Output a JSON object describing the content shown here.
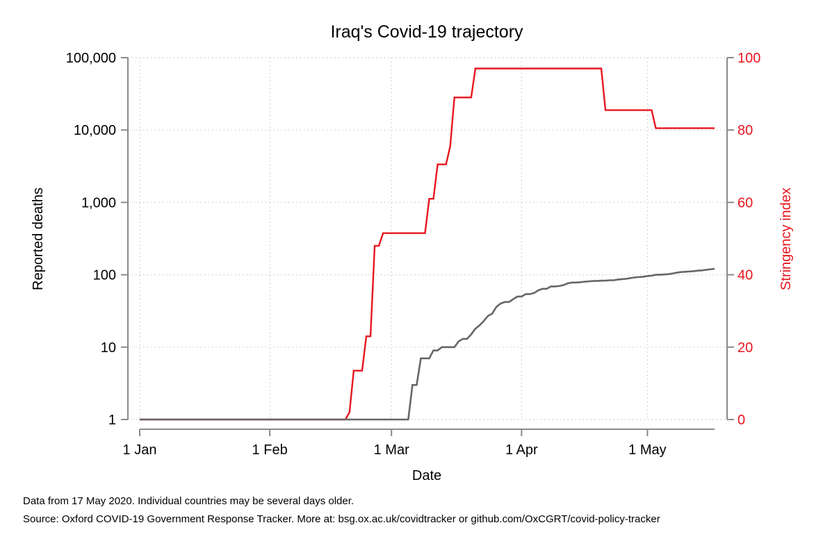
{
  "chart_data": {
    "type": "line",
    "title": "Iraq's Covid-19 trajectory",
    "xlabel": "Date",
    "ylabel": "Reported deaths",
    "y2label": "Stringency index",
    "x_ticks": [
      {
        "date": "2020-01-01",
        "label": "1 Jan"
      },
      {
        "date": "2020-02-01",
        "label": "1 Feb"
      },
      {
        "date": "2020-03-01",
        "label": "1 Mar"
      },
      {
        "date": "2020-04-01",
        "label": "1 Apr"
      },
      {
        "date": "2020-05-01",
        "label": "1 May"
      }
    ],
    "y_ticks": [
      {
        "value": 1,
        "label": "1"
      },
      {
        "value": 10,
        "label": "10"
      },
      {
        "value": 100,
        "label": "100"
      },
      {
        "value": 1000,
        "label": "1,000"
      },
      {
        "value": 10000,
        "label": "10,000"
      },
      {
        "value": 100000,
        "label": "100,000"
      }
    ],
    "y2_ticks": [
      {
        "value": 0,
        "label": "0"
      },
      {
        "value": 20,
        "label": "20"
      },
      {
        "value": 40,
        "label": "40"
      },
      {
        "value": 60,
        "label": "60"
      },
      {
        "value": 80,
        "label": "80"
      },
      {
        "value": 100,
        "label": "100"
      }
    ],
    "xlim": [
      "2020-01-01",
      "2020-05-17"
    ],
    "ylim": [
      1,
      100000
    ],
    "y2lim": [
      0,
      100
    ],
    "yscale": "log",
    "grid": true,
    "series": [
      {
        "axis": "right",
        "color": "#e8161f",
        "points": [
          [
            "2020-01-01",
            0
          ],
          [
            "2020-02-19",
            0
          ],
          [
            "2020-02-20",
            2
          ],
          [
            "2020-02-21",
            13.5
          ],
          [
            "2020-02-22",
            13.5
          ],
          [
            "2020-02-23",
            13.5
          ],
          [
            "2020-02-24",
            23
          ],
          [
            "2020-02-25",
            23
          ],
          [
            "2020-02-26",
            48
          ],
          [
            "2020-02-27",
            48
          ],
          [
            "2020-02-28",
            51.5
          ],
          [
            "2020-03-01",
            51.5
          ],
          [
            "2020-03-05",
            51.5
          ],
          [
            "2020-03-09",
            51.5
          ],
          [
            "2020-03-10",
            61
          ],
          [
            "2020-03-11",
            61
          ],
          [
            "2020-03-12",
            70.5
          ],
          [
            "2020-03-13",
            70.5
          ],
          [
            "2020-03-14",
            70.5
          ],
          [
            "2020-03-15",
            75.5
          ],
          [
            "2020-03-16",
            89
          ],
          [
            "2020-03-17",
            89
          ],
          [
            "2020-03-20",
            89
          ],
          [
            "2020-03-21",
            97
          ],
          [
            "2020-03-25",
            97
          ],
          [
            "2020-04-05",
            97
          ],
          [
            "2020-04-15",
            97
          ],
          [
            "2020-04-20",
            97
          ],
          [
            "2020-04-21",
            85.5
          ],
          [
            "2020-04-25",
            85.5
          ],
          [
            "2020-05-02",
            85.5
          ],
          [
            "2020-05-03",
            80.5
          ],
          [
            "2020-05-10",
            80.5
          ],
          [
            "2020-05-17",
            80.5
          ]
        ]
      },
      {
        "axis": "left",
        "color": "#666666",
        "points": [
          [
            "2020-01-01",
            1
          ],
          [
            "2020-02-20",
            1
          ],
          [
            "2020-03-01",
            1
          ],
          [
            "2020-03-05",
            1
          ],
          [
            "2020-03-06",
            3
          ],
          [
            "2020-03-07",
            3
          ],
          [
            "2020-03-08",
            7
          ],
          [
            "2020-03-09",
            7
          ],
          [
            "2020-03-10",
            7
          ],
          [
            "2020-03-11",
            9
          ],
          [
            "2020-03-12",
            9
          ],
          [
            "2020-03-13",
            10
          ],
          [
            "2020-03-14",
            10
          ],
          [
            "2020-03-15",
            10
          ],
          [
            "2020-03-16",
            10
          ],
          [
            "2020-03-17",
            12
          ],
          [
            "2020-03-18",
            13
          ],
          [
            "2020-03-19",
            13
          ],
          [
            "2020-03-20",
            15
          ],
          [
            "2020-03-21",
            18
          ],
          [
            "2020-03-22",
            20
          ],
          [
            "2020-03-23",
            23
          ],
          [
            "2020-03-24",
            27
          ],
          [
            "2020-03-25",
            29
          ],
          [
            "2020-03-26",
            36
          ],
          [
            "2020-03-27",
            40
          ],
          [
            "2020-03-28",
            42
          ],
          [
            "2020-03-29",
            42
          ],
          [
            "2020-03-30",
            46
          ],
          [
            "2020-03-31",
            50
          ],
          [
            "2020-04-01",
            50
          ],
          [
            "2020-04-02",
            54
          ],
          [
            "2020-04-03",
            54
          ],
          [
            "2020-04-04",
            56
          ],
          [
            "2020-04-05",
            61
          ],
          [
            "2020-04-06",
            64
          ],
          [
            "2020-04-07",
            64
          ],
          [
            "2020-04-08",
            69
          ],
          [
            "2020-04-09",
            69
          ],
          [
            "2020-04-10",
            70
          ],
          [
            "2020-04-11",
            72
          ],
          [
            "2020-04-12",
            76
          ],
          [
            "2020-04-13",
            78
          ],
          [
            "2020-04-14",
            78
          ],
          [
            "2020-04-15",
            79
          ],
          [
            "2020-04-16",
            80
          ],
          [
            "2020-04-17",
            81
          ],
          [
            "2020-04-18",
            82
          ],
          [
            "2020-04-19",
            82
          ],
          [
            "2020-04-20",
            83
          ],
          [
            "2020-04-21",
            83
          ],
          [
            "2020-04-22",
            84
          ],
          [
            "2020-04-23",
            84
          ],
          [
            "2020-04-24",
            86
          ],
          [
            "2020-04-25",
            87
          ],
          [
            "2020-04-26",
            88
          ],
          [
            "2020-04-27",
            90
          ],
          [
            "2020-04-28",
            92
          ],
          [
            "2020-04-29",
            93
          ],
          [
            "2020-04-30",
            94
          ],
          [
            "2020-05-01",
            96
          ],
          [
            "2020-05-02",
            97
          ],
          [
            "2020-05-03",
            100
          ],
          [
            "2020-05-04",
            100
          ],
          [
            "2020-05-05",
            101
          ],
          [
            "2020-05-06",
            102
          ],
          [
            "2020-05-07",
            104
          ],
          [
            "2020-05-08",
            107
          ],
          [
            "2020-05-09",
            109
          ],
          [
            "2020-05-10",
            110
          ],
          [
            "2020-05-11",
            111
          ],
          [
            "2020-05-12",
            112
          ],
          [
            "2020-05-13",
            114
          ],
          [
            "2020-05-14",
            115
          ],
          [
            "2020-05-15",
            117
          ],
          [
            "2020-05-16",
            119
          ],
          [
            "2020-05-17",
            121
          ]
        ]
      }
    ]
  },
  "notes": {
    "line1": "Data from 17 May 2020. Individual countries may be several days older.",
    "line2": "Source: Oxford COVID-19 Government Response Tracker. More at: bsg.ox.ac.uk/covidtracker or github.com/OxCGRT/covid-policy-tracker"
  }
}
